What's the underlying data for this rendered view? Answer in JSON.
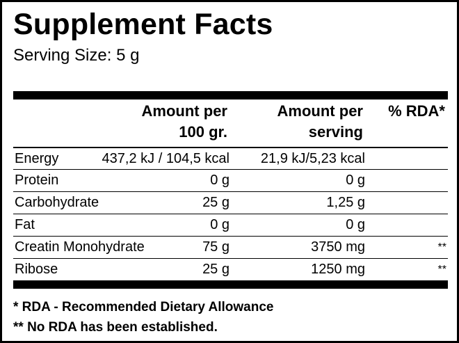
{
  "label": {
    "title": "Supplement Facts",
    "serving_size": "Serving Size: 5 g"
  },
  "columns": {
    "per100": "Amount per\n100 gr.",
    "perserving": "Amount per\nserving",
    "rda": "% RDA*"
  },
  "rows": [
    {
      "name": "Energy",
      "per100": "437,2 kJ / 104,5 kcal",
      "perserving": "21,9 kJ/5,23 kcal",
      "rda": ""
    },
    {
      "name": "Protein",
      "per100": "0 g",
      "perserving": "0 g",
      "rda": ""
    },
    {
      "name": "Carbohydrate",
      "per100": "25 g",
      "perserving": "1,25 g",
      "rda": ""
    },
    {
      "name": "Fat",
      "per100": "0 g",
      "perserving": "0 g",
      "rda": ""
    },
    {
      "name": "Creatin Monohydrate",
      "per100": "75 g",
      "perserving": "3750 mg",
      "rda": "**"
    },
    {
      "name": "Ribose",
      "per100": "25 g",
      "perserving": "1250 mg",
      "rda": "**"
    }
  ],
  "footnotes": [
    "* RDA - Recommended Dietary Allowance",
    "** No RDA has been established."
  ]
}
